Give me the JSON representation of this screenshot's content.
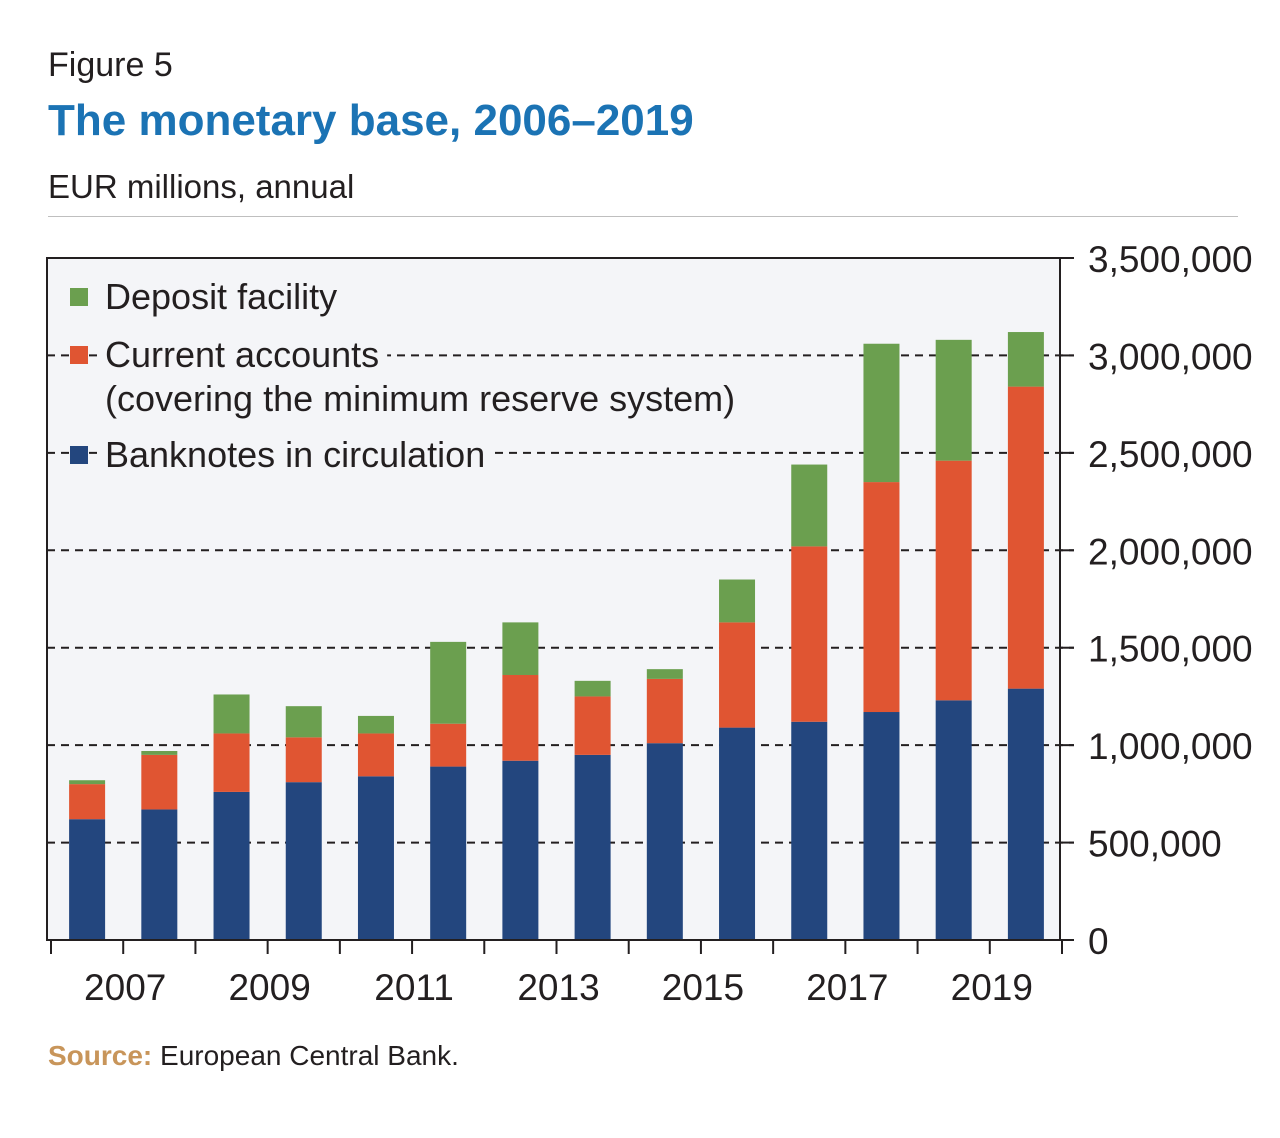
{
  "figure": {
    "label": "Figure 5",
    "title": "The monetary base, 2006–2019",
    "subtitle": "EUR millions, annual",
    "source_label": "Source:",
    "source_text": "European Central Bank."
  },
  "chart_data": {
    "type": "bar",
    "stacked": true,
    "title": "The monetary base, 2006–2019",
    "ylabel": "",
    "xlabel": "",
    "ylim": [
      0,
      3500000
    ],
    "yticks": [
      0,
      500000,
      1000000,
      1500000,
      2000000,
      2500000,
      3000000,
      3500000
    ],
    "ytick_labels": [
      "0",
      "500,000",
      "1,000,000",
      "1,500,000",
      "2,000,000",
      "2,500,000",
      "3,000,000",
      "3,500,000"
    ],
    "y_axis_position": "right",
    "grid": "dashed horizontal",
    "legend_position": "top-left",
    "categories": [
      "2006",
      "2007",
      "2008",
      "2009",
      "2010",
      "2011",
      "2012",
      "2013",
      "2014",
      "2015",
      "2016",
      "2017",
      "2018",
      "2019"
    ],
    "xtick_labels": [
      "2007",
      "2009",
      "2011",
      "2013",
      "2015",
      "2017",
      "2019"
    ],
    "series": [
      {
        "name": "Banknotes in circulation",
        "color": "#23467e",
        "values": [
          620000,
          670000,
          760000,
          810000,
          840000,
          890000,
          920000,
          950000,
          1010000,
          1090000,
          1120000,
          1170000,
          1230000,
          1290000
        ]
      },
      {
        "name": "Current accounts\n(covering the minimum reserve system)",
        "color": "#e05532",
        "values": [
          180000,
          280000,
          300000,
          230000,
          220000,
          220000,
          440000,
          300000,
          330000,
          540000,
          900000,
          1180000,
          1230000,
          1550000
        ]
      },
      {
        "name": "Deposit facility",
        "color": "#6b9f4f",
        "values": [
          20000,
          20000,
          200000,
          160000,
          90000,
          420000,
          270000,
          80000,
          50000,
          220000,
          420000,
          710000,
          620000,
          280000
        ]
      }
    ],
    "legend_order": [
      "Deposit facility",
      "Current accounts\n(covering the minimum reserve system)",
      "Banknotes in circulation"
    ],
    "legend_lines": [
      [
        "Deposit facility"
      ],
      [
        "Current accounts",
        "(covering the minimum reserve system)"
      ],
      [
        "Banknotes in circulation"
      ]
    ]
  }
}
